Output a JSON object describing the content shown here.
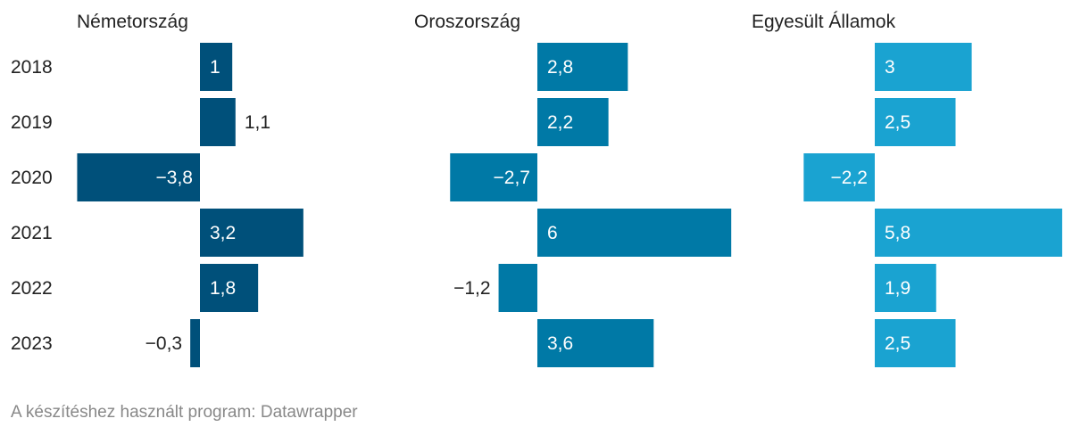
{
  "chart_data": {
    "type": "bar",
    "orientation": "horizontal",
    "categories": [
      "2018",
      "2019",
      "2020",
      "2021",
      "2022",
      "2023"
    ],
    "series": [
      {
        "name": "Németország",
        "values": [
          1,
          1.1,
          -3.8,
          3.2,
          1.8,
          -0.3
        ],
        "labels": [
          "1",
          "1,1",
          "−3,8",
          "3,2",
          "1,8",
          "−0,3"
        ],
        "color": "#00507a"
      },
      {
        "name": "Oroszország",
        "values": [
          2.8,
          2.2,
          -2.7,
          6,
          -1.2,
          3.6
        ],
        "labels": [
          "2,8",
          "2,2",
          "−2,7",
          "6",
          "−1,2",
          "3,6"
        ],
        "color": "#0079a6"
      },
      {
        "name": "Egyesült Államok",
        "values": [
          3,
          2.5,
          -2.2,
          5.8,
          1.9,
          2.5
        ],
        "labels": [
          "3",
          "2,5",
          "−2,2",
          "5,8",
          "1,9",
          "2,5"
        ],
        "color": "#1aa3d1"
      }
    ],
    "grid": false,
    "legend": "none"
  },
  "footer": "A készítéshez használt program: Datawrapper"
}
